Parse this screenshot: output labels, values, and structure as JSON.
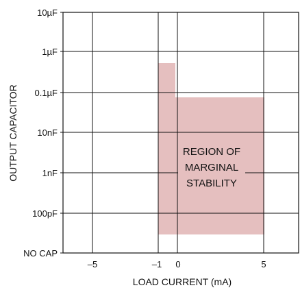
{
  "chart_data": {
    "type": "area",
    "x_axis": {
      "label": "LOAD CURRENT (mA)",
      "ticks": [
        -5,
        -1,
        0,
        5
      ],
      "tick_labels": [
        "–5",
        "–1",
        "0",
        "5"
      ],
      "range": [
        -8,
        9
      ]
    },
    "y_axis": {
      "label": "OUTPUT CAPACITOR",
      "ticks": [
        "NO CAP",
        "100pF",
        "1nF",
        "10nF",
        "0.1µF",
        "1µF",
        "10µF"
      ],
      "scale": "log (decades, NO CAP at bottom)"
    },
    "grid": true,
    "region": {
      "label_lines": [
        "REGION OF",
        "MARGINAL",
        "STABILITY"
      ],
      "color": "#e5bfbf",
      "boundary": [
        {
          "x": -1,
          "y_capacitance": "below 100pF (near NO CAP)"
        },
        {
          "x": -1,
          "y_capacitance": "~0.5µF"
        },
        {
          "x": -0.1,
          "y_capacitance": "~0.5µF"
        },
        {
          "x": -0.1,
          "y_capacitance": "~0.07µF"
        },
        {
          "x": 5,
          "y_capacitance": "~0.07µF"
        },
        {
          "x": 5,
          "y_capacitance": "below 100pF (near NO CAP)"
        }
      ]
    }
  }
}
